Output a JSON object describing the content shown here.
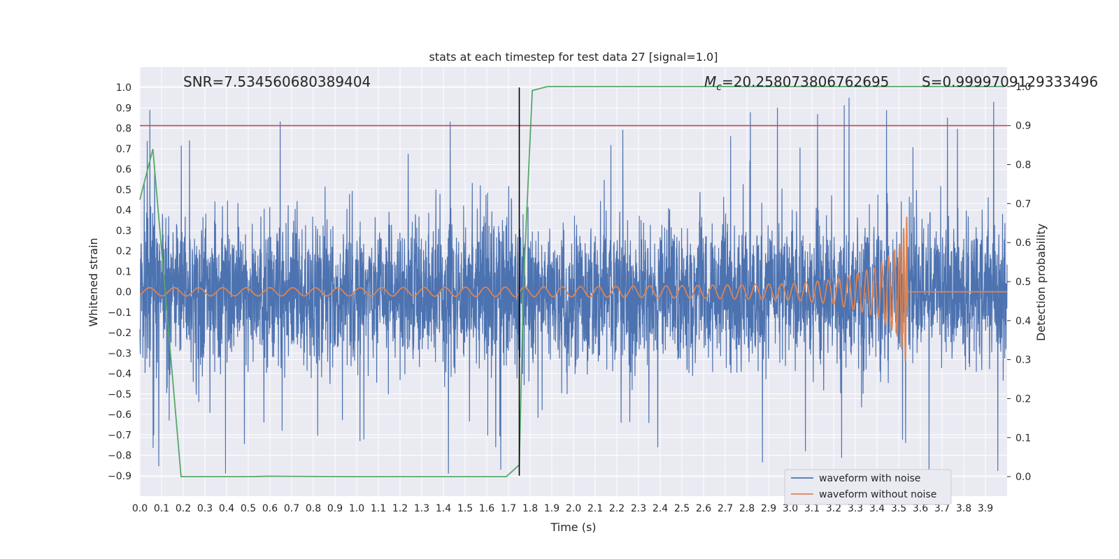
{
  "chart_data": {
    "type": "line",
    "title": "stats at each timestep for test data 27 [signal=1.0]",
    "xlabel": "Time (s)",
    "ylabel": "Whitened strain",
    "y2label": "Detection probability",
    "xlim": [
      0.0,
      4.0
    ],
    "ylim": [
      -1.0,
      1.1
    ],
    "y2lim": [
      -0.05,
      1.05
    ],
    "xticks": [
      "0.0",
      "0.1",
      "0.2",
      "0.3",
      "0.4",
      "0.5",
      "0.6",
      "0.7",
      "0.8",
      "0.9",
      "1.0",
      "1.1",
      "1.2",
      "1.3",
      "1.4",
      "1.5",
      "1.6",
      "1.7",
      "1.8",
      "1.9",
      "2.0",
      "2.1",
      "2.2",
      "2.3",
      "2.4",
      "2.5",
      "2.6",
      "2.7",
      "2.8",
      "2.9",
      "3.0",
      "3.1",
      "3.2",
      "3.3",
      "3.4",
      "3.5",
      "3.6",
      "3.7",
      "3.8",
      "3.9"
    ],
    "yticks": [
      "1.0",
      "0.9",
      "0.8",
      "0.7",
      "0.6",
      "0.5",
      "0.4",
      "0.3",
      "0.2",
      "0.1",
      "0.0",
      "−0.1",
      "−0.2",
      "−0.3",
      "−0.4",
      "−0.5",
      "−0.6",
      "−0.7",
      "−0.8",
      "−0.9"
    ],
    "y2ticks": [
      "1.0",
      "0.9",
      "0.8",
      "0.7",
      "0.6",
      "0.5",
      "0.4",
      "0.3",
      "0.2",
      "0.1",
      "0.0"
    ],
    "grid": true,
    "legend_position": "lower-right",
    "annotations": {
      "snr": "SNR=7.534560680389404",
      "mc_symbol": "M",
      "mc_sub": "c",
      "mc_value": "=20.258073806762695",
      "s": "S=0.9999709129333496"
    },
    "series": [
      {
        "name": "waveform with noise",
        "color": "#4c72b0",
        "axis": "left",
        "description_type": "noisy",
        "amplitude_envelope": [
          -0.89,
          1.0
        ]
      },
      {
        "name": "waveform without noise",
        "color": "#dd8452",
        "axis": "left",
        "merger_time": 3.54,
        "chirp_envelope": {
          "x": [
            0.0,
            1.0,
            2.0,
            2.5,
            3.0,
            3.2,
            3.4,
            3.5,
            3.54
          ],
          "amp": [
            0.02,
            0.02,
            0.025,
            0.03,
            0.04,
            0.06,
            0.12,
            0.22,
            0.38
          ]
        }
      },
      {
        "name": "",
        "color": "#55a868",
        "axis": "right",
        "x": [
          0.0,
          0.06,
          0.19,
          0.3,
          0.5,
          0.6,
          1.0,
          1.5,
          1.69,
          1.75,
          1.77,
          1.81,
          1.88,
          2.5,
          3.0,
          3.5,
          3.99
        ],
        "y": [
          0.71,
          0.84,
          0.0,
          0.0,
          0.0,
          0.001,
          0.0,
          0.0,
          0.0,
          0.03,
          0.5,
          0.99,
          1.0,
          1.0,
          1.0,
          1.0,
          1.0
        ]
      }
    ],
    "hlines": [
      {
        "axis": "right",
        "y": 0.9,
        "color": "#c44e52"
      }
    ],
    "vlines": [
      {
        "x": 1.75,
        "y_from": -0.9,
        "y_to": 1.0,
        "color": "#000000"
      }
    ]
  },
  "legend": {
    "items": [
      {
        "label": "waveform with noise",
        "color": "#4c72b0"
      },
      {
        "label": "waveform without noise",
        "color": "#dd8452"
      }
    ]
  }
}
